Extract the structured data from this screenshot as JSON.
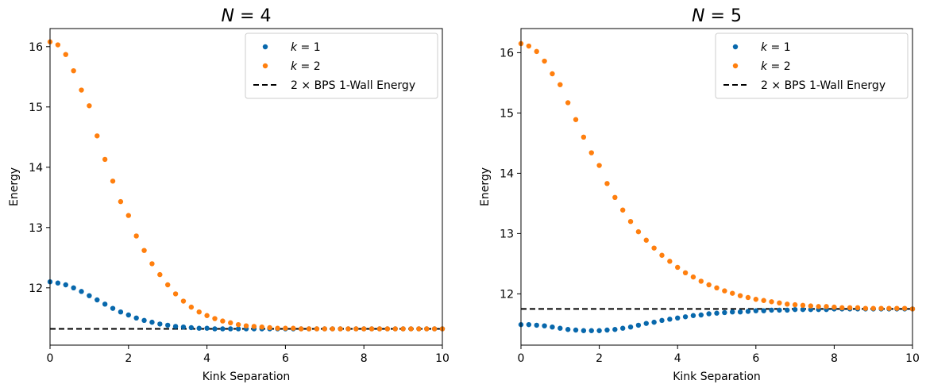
{
  "chart_data": [
    {
      "type": "scatter",
      "title": {
        "var": "N",
        "eq": " = ",
        "val": "4"
      },
      "xlabel": "Kink Separation",
      "ylabel": "Energy",
      "xlim": [
        0,
        10
      ],
      "ylim": [
        11.05,
        16.3
      ],
      "xticks": [
        0,
        2,
        4,
        6,
        8,
        10
      ],
      "yticks": [
        12,
        13,
        14,
        15,
        16
      ],
      "legend_placement": "upper right",
      "series": [
        {
          "name": {
            "var": "k",
            "eq": " = ",
            "val": "1"
          },
          "color": "#0868ac",
          "x": [
            0,
            0.2,
            0.4,
            0.6,
            0.8,
            1.0,
            1.2,
            1.4,
            1.6,
            1.8,
            2.0,
            2.2,
            2.4,
            2.6,
            2.8,
            3.0,
            3.2,
            3.4,
            3.6,
            3.8,
            4.0,
            4.2,
            4.4,
            4.6,
            4.8,
            5.0,
            5.2,
            5.4,
            5.6,
            5.8,
            6.0,
            6.2,
            6.4,
            6.6,
            6.8,
            7.0,
            7.2,
            7.4,
            7.6,
            7.8,
            8.0,
            8.2,
            8.4,
            8.6,
            8.8,
            9.0,
            9.2,
            9.4,
            9.6,
            9.8,
            10.0
          ],
          "y": [
            12.1,
            12.08,
            12.05,
            12.0,
            11.94,
            11.87,
            11.8,
            11.73,
            11.66,
            11.6,
            11.55,
            11.5,
            11.46,
            11.43,
            11.4,
            11.38,
            11.36,
            11.35,
            11.34,
            11.33,
            11.33,
            11.32,
            11.32,
            11.32,
            11.32,
            11.32,
            11.32,
            11.32,
            11.32,
            11.32,
            11.32,
            11.32,
            11.32,
            11.32,
            11.32,
            11.32,
            11.32,
            11.32,
            11.32,
            11.32,
            11.32,
            11.32,
            11.32,
            11.32,
            11.32,
            11.32,
            11.32,
            11.32,
            11.32,
            11.32,
            11.32
          ]
        },
        {
          "name": {
            "var": "k",
            "eq": " = ",
            "val": "2"
          },
          "color": "#ff7f0e",
          "x": [
            0,
            0.2,
            0.4,
            0.6,
            0.8,
            1.0,
            1.2,
            1.4,
            1.6,
            1.8,
            2.0,
            2.2,
            2.4,
            2.6,
            2.8,
            3.0,
            3.2,
            3.4,
            3.6,
            3.8,
            4.0,
            4.2,
            4.4,
            4.6,
            4.8,
            5.0,
            5.2,
            5.4,
            5.6,
            5.8,
            6.0,
            6.2,
            6.4,
            6.6,
            6.8,
            7.0,
            7.2,
            7.4,
            7.6,
            7.8,
            8.0,
            8.2,
            8.4,
            8.6,
            8.8,
            9.0,
            9.2,
            9.4,
            9.6,
            9.8,
            10.0
          ],
          "y": [
            16.08,
            16.03,
            15.87,
            15.6,
            15.28,
            15.02,
            14.52,
            14.13,
            13.77,
            13.43,
            13.2,
            12.86,
            12.62,
            12.4,
            12.22,
            12.05,
            11.9,
            11.78,
            11.68,
            11.6,
            11.54,
            11.49,
            11.45,
            11.42,
            11.39,
            11.37,
            11.36,
            11.35,
            11.34,
            11.33,
            11.33,
            11.33,
            11.32,
            11.32,
            11.32,
            11.32,
            11.32,
            11.32,
            11.32,
            11.32,
            11.32,
            11.32,
            11.32,
            11.32,
            11.32,
            11.32,
            11.32,
            11.32,
            11.32,
            11.32,
            11.32
          ]
        }
      ],
      "reference_line": {
        "label_prefix": "2",
        "times": " × ",
        "label_suffix": "BPS 1-Wall Energy",
        "y": 11.32,
        "style": "dashed",
        "color": "#000000"
      }
    },
    {
      "type": "scatter",
      "title": {
        "var": "N",
        "eq": " = ",
        "val": "5"
      },
      "xlabel": "Kink Separation",
      "ylabel": "Energy",
      "xlim": [
        0,
        10
      ],
      "ylim": [
        11.15,
        16.4
      ],
      "xticks": [
        0,
        2,
        4,
        6,
        8,
        10
      ],
      "yticks": [
        12,
        13,
        14,
        15,
        16
      ],
      "legend_placement": "upper right",
      "series": [
        {
          "name": {
            "var": "k",
            "eq": " = ",
            "val": "1"
          },
          "color": "#0868ac",
          "x": [
            0,
            0.2,
            0.4,
            0.6,
            0.8,
            1.0,
            1.2,
            1.4,
            1.6,
            1.8,
            2.0,
            2.2,
            2.4,
            2.6,
            2.8,
            3.0,
            3.2,
            3.4,
            3.6,
            3.8,
            4.0,
            4.2,
            4.4,
            4.6,
            4.8,
            5.0,
            5.2,
            5.4,
            5.6,
            5.8,
            6.0,
            6.2,
            6.4,
            6.6,
            6.8,
            7.0,
            7.2,
            7.4,
            7.6,
            7.8,
            8.0,
            8.2,
            8.4,
            8.6,
            8.8,
            9.0,
            9.2,
            9.4,
            9.6,
            9.8,
            10.0
          ],
          "y": [
            11.49,
            11.49,
            11.48,
            11.47,
            11.45,
            11.43,
            11.41,
            11.4,
            11.39,
            11.39,
            11.39,
            11.4,
            11.41,
            11.43,
            11.45,
            11.48,
            11.51,
            11.53,
            11.56,
            11.58,
            11.6,
            11.62,
            11.64,
            11.65,
            11.67,
            11.68,
            11.69,
            11.7,
            11.7,
            11.71,
            11.72,
            11.72,
            11.73,
            11.73,
            11.73,
            11.74,
            11.74,
            11.74,
            11.74,
            11.74,
            11.75,
            11.75,
            11.75,
            11.75,
            11.75,
            11.75,
            11.75,
            11.75,
            11.75,
            11.75,
            11.75
          ]
        },
        {
          "name": {
            "var": "k",
            "eq": " = ",
            "val": "2"
          },
          "color": "#ff7f0e",
          "x": [
            0,
            0.2,
            0.4,
            0.6,
            0.8,
            1.0,
            1.2,
            1.4,
            1.6,
            1.8,
            2.0,
            2.2,
            2.4,
            2.6,
            2.8,
            3.0,
            3.2,
            3.4,
            3.6,
            3.8,
            4.0,
            4.2,
            4.4,
            4.6,
            4.8,
            5.0,
            5.2,
            5.4,
            5.6,
            5.8,
            6.0,
            6.2,
            6.4,
            6.6,
            6.8,
            7.0,
            7.2,
            7.4,
            7.6,
            7.8,
            8.0,
            8.2,
            8.4,
            8.6,
            8.8,
            9.0,
            9.2,
            9.4,
            9.6,
            9.8,
            10.0
          ],
          "y": [
            16.15,
            16.11,
            16.02,
            15.86,
            15.65,
            15.47,
            15.17,
            14.89,
            14.6,
            14.34,
            14.13,
            13.83,
            13.6,
            13.39,
            13.2,
            13.03,
            12.89,
            12.76,
            12.64,
            12.54,
            12.44,
            12.35,
            12.28,
            12.21,
            12.15,
            12.1,
            12.05,
            12.01,
            11.97,
            11.94,
            11.91,
            11.89,
            11.87,
            11.85,
            11.83,
            11.82,
            11.81,
            11.8,
            11.79,
            11.79,
            11.78,
            11.77,
            11.77,
            11.77,
            11.76,
            11.76,
            11.76,
            11.76,
            11.76,
            11.76,
            11.75
          ]
        }
      ],
      "reference_line": {
        "label_prefix": "2",
        "times": " × ",
        "label_suffix": "BPS 1-Wall Energy",
        "y": 11.75,
        "style": "dashed",
        "color": "#000000"
      }
    }
  ]
}
